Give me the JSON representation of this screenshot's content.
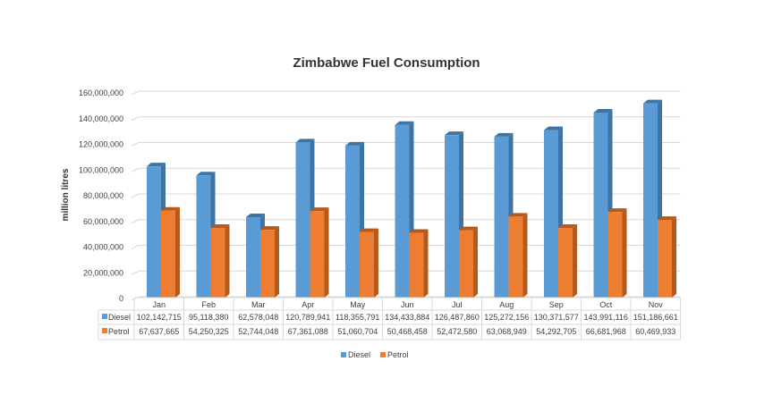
{
  "chart_data": {
    "type": "bar",
    "title": "Zimbabwe Fuel Consumption",
    "xlabel": "",
    "ylabel": "million litres",
    "ylim": [
      0,
      160000000
    ],
    "yticks": [
      0,
      20000000,
      40000000,
      60000000,
      80000000,
      100000000,
      120000000,
      140000000,
      160000000
    ],
    "ytick_labels": [
      "0",
      "20,000,000",
      "40,000,000",
      "60,000,000",
      "80,000,000",
      "100,000,000",
      "120,000,000",
      "140,000,000",
      "160,000,000"
    ],
    "categories": [
      "Jan",
      "Feb",
      "Mar",
      "Apr",
      "May",
      "Jun",
      "Jul",
      "Aug",
      "Sep",
      "Oct",
      "Nov"
    ],
    "series": [
      {
        "name": "Diesel",
        "color": "#5b9bd5",
        "side_color": "#3f73a3",
        "values": [
          102142715,
          95118380,
          62578048,
          120789941,
          118355791,
          134433884,
          126487860,
          125272156,
          130371577,
          143991116,
          151186661
        ],
        "labels": [
          "102,142,715",
          "95,118,380",
          "62,578,048",
          "120,789,941",
          "118,355,791",
          "134,433,884",
          "126,487,860",
          "125,272,156",
          "130,371,577",
          "143,991,116",
          "151,186,661"
        ]
      },
      {
        "name": "Petrol",
        "color": "#ed7d31",
        "side_color": "#b65a1c",
        "values": [
          67637665,
          54250325,
          52744048,
          67361088,
          51060704,
          50468458,
          52472580,
          63068949,
          54292705,
          66681968,
          60469933
        ],
        "labels": [
          "67,637,665",
          "54,250,325",
          "52,744,048",
          "67,361,088",
          "51,060,704",
          "50,468,458",
          "52,472,580",
          "63,068,949",
          "54,292,705",
          "66,681,968",
          "60,469,933"
        ]
      }
    ],
    "grid": true,
    "legend": "bottom-center",
    "data_table": true
  }
}
